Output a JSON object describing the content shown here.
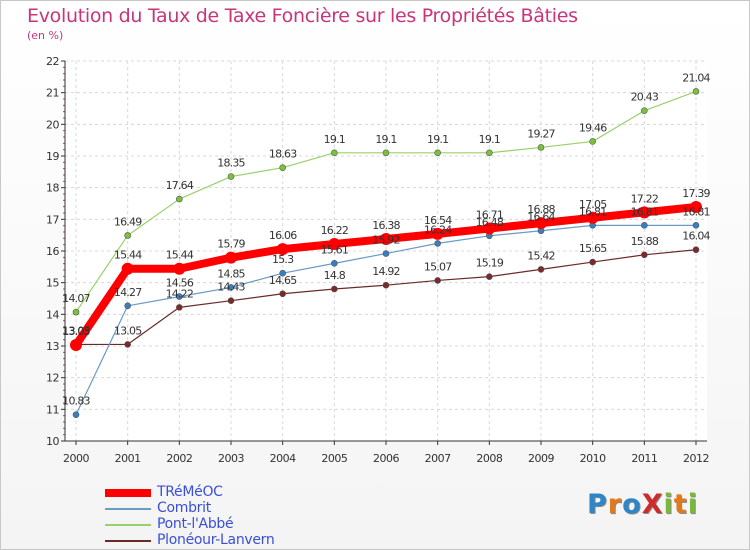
{
  "title": "Evolution du Taux de Taxe Foncière sur les Propriétés Bâties",
  "subtitle": "(en %)",
  "logo": {
    "text": "ProXiti",
    "letters": [
      {
        "ch": "P",
        "color": "#2e86c8"
      },
      {
        "ch": "r",
        "color": "#e07a1f"
      },
      {
        "ch": "o",
        "color": "#2e86c8"
      },
      {
        "ch": "X",
        "color": "#d02b2b"
      },
      {
        "ch": "i",
        "color": "#7ab83a"
      },
      {
        "ch": "t",
        "color": "#e07a1f"
      },
      {
        "ch": "i",
        "color": "#7ab83a"
      }
    ]
  },
  "chart_data": {
    "type": "line",
    "title": "Evolution du Taux de Taxe Foncière sur les Propriétés Bâties",
    "ylabel": "(en %)",
    "xlabel": "",
    "ylim": [
      10,
      22
    ],
    "grid": true,
    "legend_position": "bottom-left",
    "x": [
      "2000",
      "2001",
      "2002",
      "2003",
      "2004",
      "2005",
      "2006",
      "2007",
      "2008",
      "2009",
      "2010",
      "2011",
      "2012"
    ],
    "y_ticks": [
      "10",
      "11",
      "12",
      "13",
      "14",
      "15",
      "16",
      "17",
      "18",
      "19",
      "20",
      "21",
      "22"
    ],
    "series": [
      {
        "name": "Ploneour-Lanvern",
        "label": "Plonéour-Lanvern",
        "color": "#6b2a2a",
        "marker": "#7a2a2a",
        "width": 1.2,
        "r": 3,
        "values": [
          13.05,
          13.05,
          14.22,
          14.43,
          14.65,
          14.8,
          14.92,
          15.07,
          15.19,
          15.42,
          15.65,
          15.88,
          16.04
        ],
        "labels": [
          "13.05",
          "13.05",
          "14.22",
          "14.43",
          "14.65",
          "14.8",
          "14.92",
          "15.07",
          "15.19",
          "15.42",
          "15.65",
          "15.88",
          "16.04"
        ]
      },
      {
        "name": "Combrit",
        "label": "Combrit",
        "color": "#6b9ac4",
        "marker": "#3a7ec0",
        "width": 1.2,
        "r": 3,
        "values": [
          10.83,
          14.27,
          14.56,
          14.85,
          15.3,
          15.61,
          15.92,
          16.24,
          16.48,
          16.64,
          16.81,
          16.81,
          16.81
        ],
        "labels": [
          "10.83",
          "14.27",
          "14.56",
          "14.85",
          "15.3",
          "15.61",
          "15.92",
          "16.24",
          "16.48",
          "16.64",
          "16.81",
          "16.81",
          "16.81"
        ]
      },
      {
        "name": "Pont-l-Abbe",
        "label": "Pont-l'Abbé",
        "color": "#9ad06a",
        "marker": "#7ac23a",
        "width": 1.2,
        "r": 3,
        "values": [
          14.07,
          16.49,
          17.64,
          18.35,
          18.63,
          19.1,
          19.1,
          19.1,
          19.1,
          19.27,
          19.46,
          20.43,
          21.04
        ],
        "labels": [
          "14.07",
          "16.49",
          "17.64",
          "18.35",
          "18.63",
          "19.1",
          "19.1",
          "19.1",
          "19.1",
          "19.27",
          "19.46",
          "20.43",
          "21.04"
        ]
      },
      {
        "name": "Tremeoc",
        "label": "TRéMéOC",
        "color": "#ff0000",
        "marker": "#ff0000",
        "width": 8,
        "r": 6,
        "values": [
          13.03,
          15.44,
          15.44,
          15.79,
          16.06,
          16.22,
          16.38,
          16.54,
          16.71,
          16.88,
          17.05,
          17.22,
          17.39
        ],
        "labels": [
          "13.03",
          "15.44",
          "15.44",
          "15.79",
          "16.06",
          "16.22",
          "16.38",
          "16.54",
          "16.71",
          "16.88",
          "17.05",
          "17.22",
          "17.39"
        ]
      }
    ],
    "legend_order": [
      "Tremeoc",
      "Combrit",
      "Pont-l-Abbe",
      "Ploneour-Lanvern"
    ]
  }
}
